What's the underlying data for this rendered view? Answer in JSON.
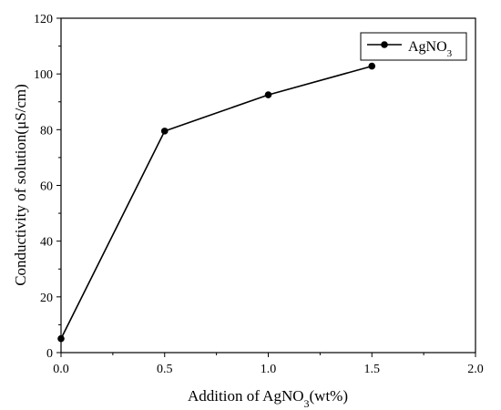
{
  "chart_data": {
    "type": "line",
    "xlabel_parts": [
      "Addition of AgNO",
      "3",
      "(wt%)"
    ],
    "ylabel": "Conductivity of solution(μS/cm)",
    "xlim": [
      0.0,
      2.0
    ],
    "ylim": [
      0,
      120
    ],
    "xticks": [
      "0.0",
      "0.5",
      "1.0",
      "1.5",
      "2.0"
    ],
    "yticks": [
      "0",
      "20",
      "40",
      "60",
      "80",
      "100",
      "120"
    ],
    "grid": false,
    "legend_position": "top-right",
    "series": [
      {
        "name_parts": [
          "AgNO",
          "3"
        ],
        "color": "#000000",
        "marker": "circle",
        "x": [
          0.0,
          0.5,
          1.0,
          1.5
        ],
        "y": [
          5,
          79.5,
          92.5,
          102.8
        ]
      }
    ]
  }
}
